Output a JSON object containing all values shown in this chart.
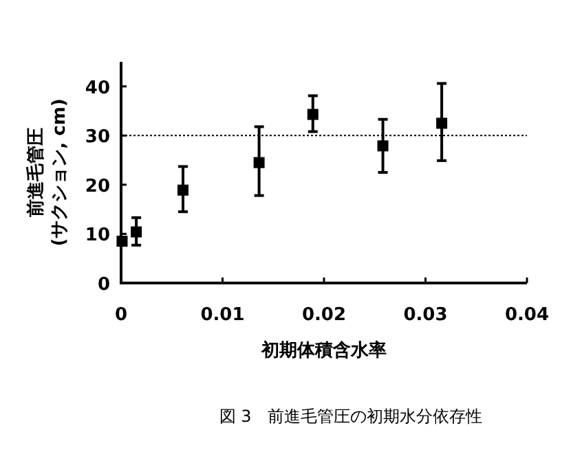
{
  "chart_data": {
    "type": "scatter",
    "xlabel": "初期体積含水率",
    "ylabel": "前進毛管圧\n(サクション, cm)",
    "annotations": [
      "図 3　前進毛管圧の初期水分依存性"
    ],
    "x": [
      0.0001,
      0.0015,
      0.0061,
      0.0136,
      0.0189,
      0.0258,
      0.0316
    ],
    "values": [
      8.5,
      10.4,
      18.9,
      24.5,
      34.3,
      27.9,
      32.5
    ],
    "errors": [
      null,
      [
        7.7,
        13.3
      ],
      [
        14.5,
        23.7
      ],
      [
        17.8,
        31.8
      ],
      [
        30.8,
        38.1
      ],
      [
        22.5,
        33.3
      ],
      [
        24.9,
        40.6
      ]
    ],
    "color": "#000000",
    "marker": "square",
    "xlim": [
      0,
      0.04
    ],
    "ylim": [
      0,
      45
    ],
    "xticks": [
      0,
      0.01,
      0.02,
      0.03,
      0.04
    ],
    "yticks": [
      0,
      10,
      20,
      30,
      40
    ],
    "ref_lines": [
      {
        "axis": "y",
        "value": 30,
        "line_style": "dotted"
      }
    ],
    "grid": false
  }
}
